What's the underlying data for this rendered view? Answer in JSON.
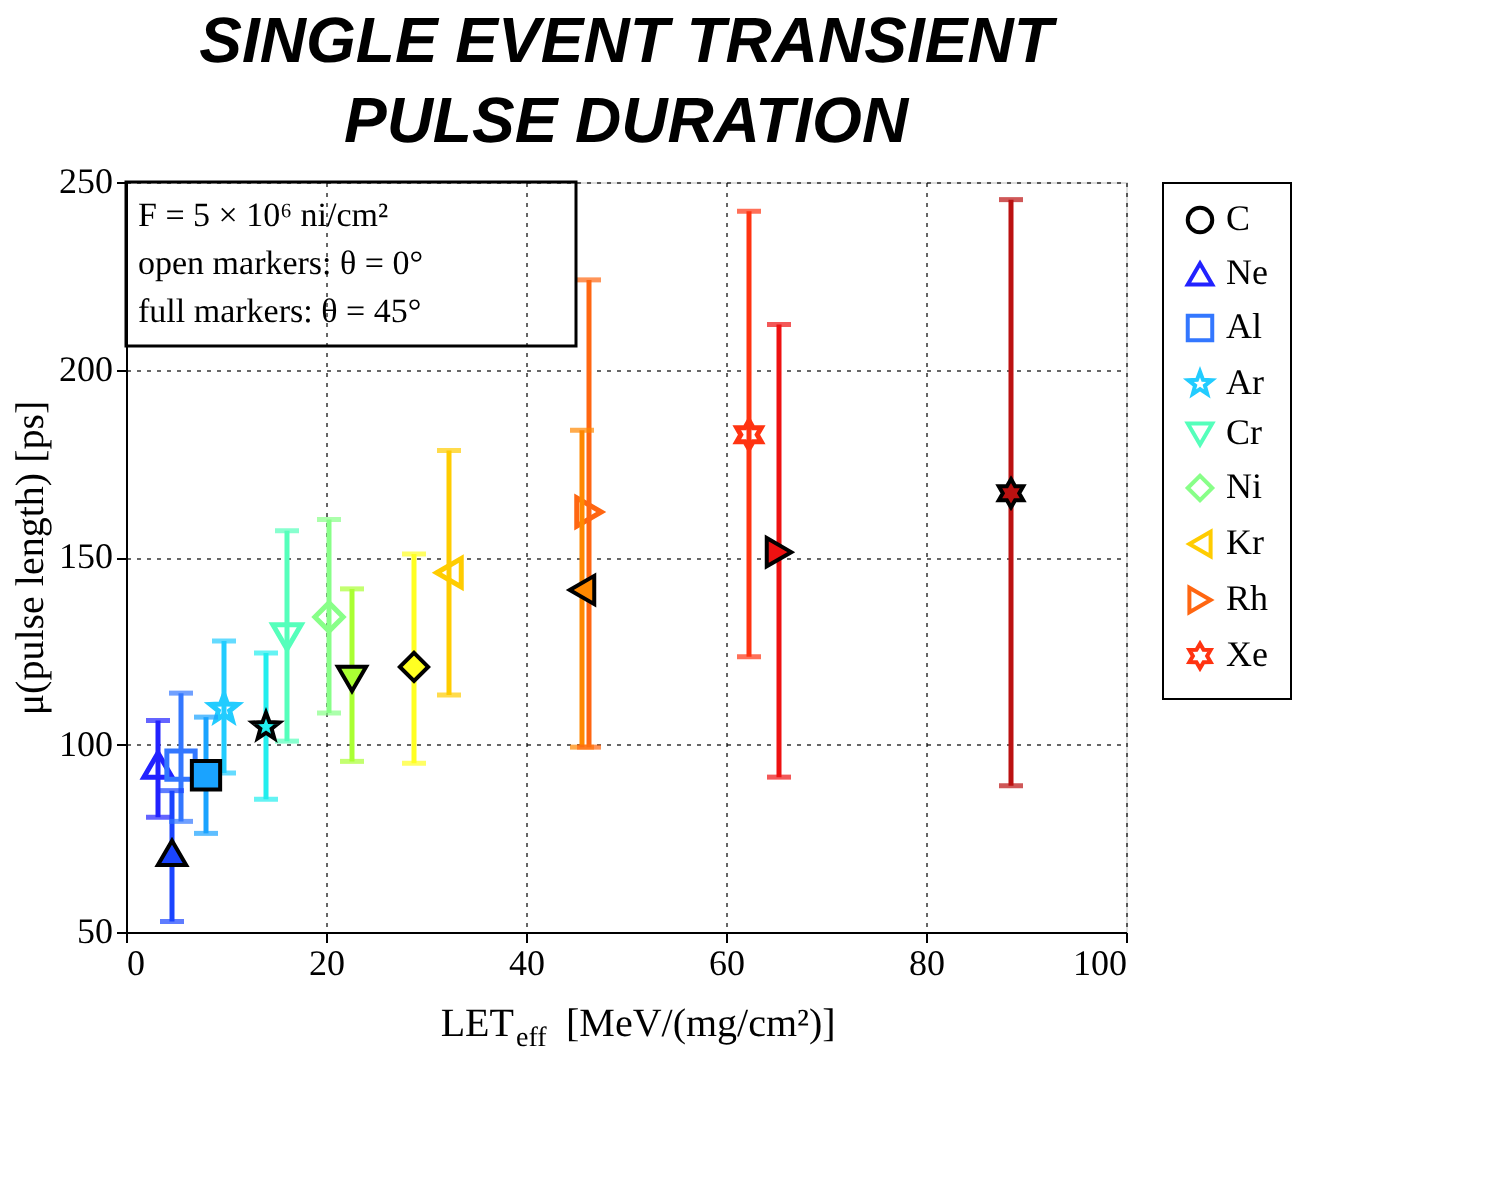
{
  "chart_data": {
    "type": "scatter",
    "title": "SINGLE EVENT TRANSIENT PULSE DURATION",
    "xlabel": "LET$_{eff}$ [MeV/(mg/cm²)]",
    "ylabel": "μ(pulse length) [ps]",
    "xlim": [
      0,
      100
    ],
    "ylim": [
      50,
      250
    ],
    "xticks": [
      0,
      20,
      40,
      60,
      80,
      100
    ],
    "yticks": [
      50,
      100,
      150,
      200,
      250
    ],
    "grid": true,
    "legend": "right",
    "annotations": [
      "F = 5 × 10⁶ ni/cm²",
      "open markers: θ = 0°",
      "full markers: θ = 45°"
    ],
    "series": [
      {
        "name": "C",
        "marker": "circle"
      },
      {
        "name": "Ne",
        "marker": "triangle",
        "color": "#2222ff",
        "x": [
          3.2
        ],
        "values": [
          94.5
        ],
        "errors": [
          [
            80.6,
            106.4
          ]
        ]
      },
      {
        "marker": "triangle",
        "color": "#1a44ff",
        "x": [
          4.6
        ],
        "values": [
          71.1
        ],
        "errors": [
          [
            52.8,
            87.7
          ]
        ]
      },
      {
        "name": "Al",
        "marker": "square",
        "color": "#3377ff",
        "x": [
          5.5
        ],
        "values": [
          94.5
        ],
        "errors": [
          [
            79.5,
            113.7
          ]
        ]
      },
      {
        "marker": "square",
        "color": "#1aa3ff",
        "x": [
          8
        ],
        "values": [
          91.8
        ],
        "errors": [
          [
            76.3,
            107.3
          ]
        ]
      },
      {
        "name": "Ar",
        "marker": "star",
        "color": "#22ccff",
        "x": [
          9.8
        ],
        "values": [
          109.5
        ],
        "errors": [
          [
            92.4,
            127.6
          ]
        ]
      },
      {
        "marker": "star",
        "color": "#22eeee",
        "x": [
          14
        ],
        "values": [
          104.7
        ],
        "errors": [
          [
            85.4,
            124.4
          ]
        ]
      },
      {
        "name": "Cr",
        "marker": "triangle-down",
        "color": "#55ffbb",
        "x": [
          16.1
        ],
        "values": [
          128.7
        ],
        "errors": [
          [
            100.9,
            157
          ]
        ]
      },
      {
        "marker": "triangle-down",
        "color": "#aaff33",
        "x": [
          22.6
        ],
        "values": [
          117.5
        ],
        "errors": [
          [
            95.5,
            141.5
          ]
        ]
      },
      {
        "name": "Ni",
        "marker": "diamond",
        "color": "#88ff88",
        "x": [
          20.3
        ],
        "values": [
          134
        ],
        "errors": [
          [
            108.4,
            160
          ]
        ]
      },
      {
        "marker": "diamond",
        "color": "#ffff22",
        "x": [
          28.8
        ],
        "values": [
          120.7
        ],
        "errors": [
          [
            95,
            150.8
          ]
        ]
      },
      {
        "name": "Kr",
        "marker": "triangle-left",
        "color": "#ffcc00",
        "x": [
          32.3
        ],
        "values": [
          145.8
        ],
        "errors": [
          [
            113.2,
            178.4
          ]
        ]
      },
      {
        "marker": "triangle-left",
        "color": "#ff8800",
        "x": [
          45.6
        ],
        "values": [
          141.2
        ],
        "errors": [
          [
            99.3,
            183.8
          ]
        ]
      },
      {
        "name": "Rh",
        "marker": "triangle-right",
        "color": "#ff6611",
        "x": [
          46.3
        ],
        "values": [
          162
        ],
        "errors": [
          [
            99.3,
            223.9
          ]
        ]
      },
      {
        "marker": "triangle-right",
        "color": "#ee1111",
        "x": [
          65.3
        ],
        "values": [
          151.3
        ],
        "errors": [
          [
            91.3,
            212
          ]
        ]
      },
      {
        "name": "Xe",
        "color": "#ff3311",
        "x": [
          62.3
        ],
        "values": [
          182.6
        ],
        "errors": [
          [
            123.4,
            242.2
          ]
        ]
      },
      {
        "color": "#bb1111",
        "x": [
          88.5
        ],
        "values": [
          167
        ],
        "errors": [
          [
            89,
            245.3
          ]
        ]
      }
    ]
  }
}
